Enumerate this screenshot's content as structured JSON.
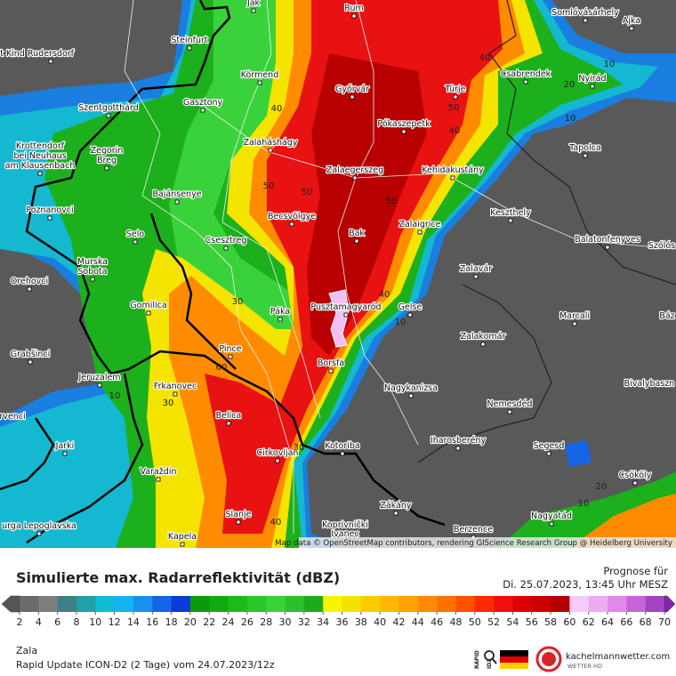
{
  "map": {
    "places": [
      "Jak",
      "Rum",
      "Somlóvásárhely",
      "Ajka",
      "t Kind",
      "Rudersdorf",
      "Steinfurt",
      "Körmend",
      "Csabrendek",
      "Nyirád",
      "Győrvár",
      "Türje",
      "Szentgotthárd",
      "Gasztony",
      "Pókaszepetk",
      "Tapolca",
      "Zalaháshágy",
      "Zegorin",
      "Breg",
      "Krottendorf",
      "bei Neuhaus",
      "am Klausenbach",
      "Zalaegerszeg",
      "Kehidakustány",
      "Bajánsenye",
      "Keszthely",
      "Poznanovci",
      "Becsvölgye",
      "Zalaigrice",
      "Selo",
      "Csesztreg",
      "Bak",
      "Balatonfenyves",
      "Szólós",
      "Murska",
      "Sobota",
      "Zalavár",
      "Orehovci",
      "Pusztamagyaród",
      "Gelse",
      "Marcali",
      "Gomilica",
      "Páka",
      "Báz",
      "Zalakomár",
      "Grabšinci",
      "Pince",
      "Borsfa",
      "Jeruzalem",
      "Frkanovec",
      "Nagykanizsa",
      "Bivalybaszn",
      "Nemesdéd",
      "rvenci",
      "Belica",
      "Iharosberény",
      "Jarki",
      "Segesd",
      "Cirkovljan",
      "Kotoriba",
      "Varaždin",
      "Csököly",
      "Zákány",
      "Nagyatád",
      "Slanje",
      "Koprivnički",
      "Ivanec",
      "Berzence",
      "Kapela",
      "urga Lepoglavska"
    ],
    "contours": [
      "40",
      "10",
      "20",
      "10",
      "40",
      "50",
      "40",
      "50",
      "50",
      "50",
      "30",
      "40",
      "10",
      "60",
      "30",
      "10",
      "30",
      "40",
      "20",
      "10"
    ],
    "attribution": "Map data © OpenStreetMap contributors, rendering GIScience Research Group @ Heidelberg University"
  },
  "legend": {
    "title": "Simulierte max. Radarreflektivität (dBZ)",
    "forecast_label": "Prognose für",
    "forecast_time": "Di. 25.07.2023, 13:45 Uhr MESZ",
    "ticks": [
      2,
      4,
      6,
      8,
      10,
      12,
      14,
      16,
      18,
      20,
      22,
      24,
      26,
      28,
      30,
      32,
      34,
      36,
      38,
      40,
      42,
      44,
      46,
      48,
      50,
      52,
      54,
      56,
      58,
      60,
      62,
      64,
      66,
      68,
      70
    ],
    "colors": [
      "#555555",
      "#6a6a6a",
      "#7e7e7e",
      "#3f7f86",
      "#239fa8",
      "#10bcd4",
      "#14b4f0",
      "#1890ee",
      "#1466e6",
      "#0a3cd8",
      "#0c9a0c",
      "#12aa12",
      "#1cba1c",
      "#2ac62a",
      "#3ad23a",
      "#2cc02c",
      "#1eaa1e",
      "#f6f600",
      "#f2e200",
      "#f8cc00",
      "#ffb800",
      "#ffa200",
      "#ff8a00",
      "#ff7000",
      "#ff5000",
      "#ff2a00",
      "#f01010",
      "#de0000",
      "#cc0000",
      "#b40000",
      "#f8ccf8",
      "#f0aaf0",
      "#e288ea",
      "#c864d8",
      "#a444c4",
      "#8424ac"
    ],
    "region": "Zala",
    "model_run": "Rapid Update ICON-D2 (2 Tage) vom 24.07.2023/12z",
    "logo_text": "RAPID",
    "logo_sub": "IDZ",
    "brand": "kachelmannwetter.com",
    "brand_sub": "WETTER HD"
  }
}
